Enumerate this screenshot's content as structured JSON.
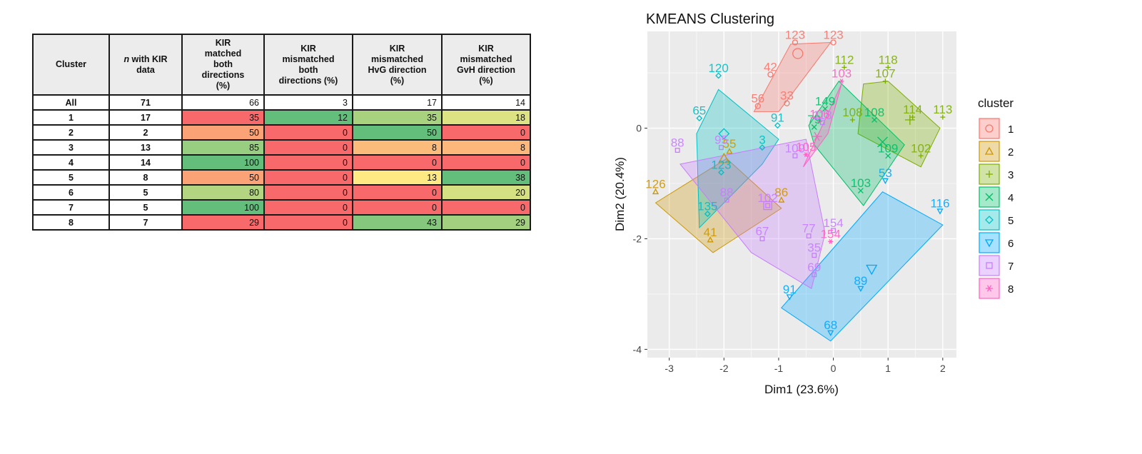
{
  "table": {
    "headers": [
      {
        "parts": [
          "Cluster"
        ]
      },
      {
        "italic": "n",
        "parts": [
          " with KIR",
          "data"
        ]
      },
      {
        "parts": [
          "KIR",
          "matched",
          "both",
          "directions",
          "(%)"
        ]
      },
      {
        "parts": [
          "KIR",
          "mismatched",
          "both",
          "directions (%)"
        ]
      },
      {
        "parts": [
          "KIR",
          "mismatched",
          "HvG direction",
          "(%)"
        ]
      },
      {
        "parts": [
          "KIR",
          "mismatched",
          "GvH direction",
          "(%)"
        ]
      }
    ],
    "rows": [
      [
        "All",
        "71",
        "66",
        "3",
        "17",
        "14"
      ],
      [
        "1",
        "17",
        "35",
        "12",
        "35",
        "18"
      ],
      [
        "2",
        "2",
        "50",
        "0",
        "50",
        "0"
      ],
      [
        "3",
        "13",
        "85",
        "0",
        "8",
        "8"
      ],
      [
        "4",
        "14",
        "100",
        "0",
        "0",
        "0"
      ],
      [
        "5",
        "8",
        "50",
        "0",
        "13",
        "38"
      ],
      [
        "6",
        "5",
        "80",
        "0",
        "0",
        "20"
      ],
      [
        "7",
        "5",
        "100",
        "0",
        "0",
        "0"
      ],
      [
        "8",
        "7",
        "29",
        "0",
        "43",
        "29"
      ]
    ],
    "cell_colors": [
      [
        null,
        null,
        null,
        null,
        null,
        null
      ],
      [
        null,
        null,
        "#f8696b",
        "#63be7b",
        "#a9d27f",
        "#dde283"
      ],
      [
        null,
        null,
        "#fba276",
        "#f8696b",
        "#63be7b",
        "#f8696b"
      ],
      [
        null,
        null,
        "#98ce7f",
        "#f8696b",
        "#fbbb7b",
        "#fcb77a"
      ],
      [
        null,
        null,
        "#63be7b",
        "#f8696b",
        "#f8696b",
        "#f8696b"
      ],
      [
        null,
        null,
        "#fba276",
        "#f8696b",
        "#fee983",
        "#63be7b"
      ],
      [
        null,
        null,
        "#b3d581",
        "#f8696b",
        "#f8696b",
        "#d4e082"
      ],
      [
        null,
        null,
        "#63be7b",
        "#f8696b",
        "#f8696b",
        "#f8696b"
      ],
      [
        null,
        null,
        "#f8696b",
        "#f8696b",
        "#85c87d",
        "#a3d07f"
      ]
    ]
  },
  "chart_data": {
    "type": "scatter",
    "title": "KMEANS Clustering",
    "xlabel": "Dim1 (23.6%)",
    "ylabel": "Dim2 (20.4%)",
    "xlim": [
      -3.4,
      2.25
    ],
    "ylim": [
      -4.15,
      1.75
    ],
    "x_ticks": [
      -3,
      -2,
      -1,
      0,
      1,
      2
    ],
    "y_ticks": [
      -4,
      -2,
      0
    ],
    "grid": true,
    "legend": {
      "title": "cluster",
      "position": "right"
    },
    "series": [
      {
        "name": "1",
        "color": "#f8766d",
        "marker": "circle",
        "points": [
          [
            -0.7,
            1.55,
            "123"
          ],
          [
            0,
            1.55,
            "123"
          ],
          [
            -1.15,
            0.97,
            "42"
          ],
          [
            -1.38,
            0.4,
            "56"
          ],
          [
            -0.85,
            0.45,
            "33"
          ]
        ],
        "hull": [
          [
            -0.78,
            1.52
          ],
          [
            -0.05,
            1.55
          ],
          [
            -1.0,
            0.3
          ],
          [
            -1.45,
            0.3
          ]
        ],
        "centroid": [
          -0.65,
          1.35
        ]
      },
      {
        "name": "2",
        "color": "#cd9600",
        "marker": "triangle",
        "points": [
          [
            -3.25,
            -1.15,
            "126"
          ],
          [
            -1.9,
            -0.42,
            "55"
          ],
          [
            -0.95,
            -1.3,
            "86"
          ],
          [
            -2.25,
            -2.02,
            "41"
          ]
        ],
        "hull": [
          [
            -3.25,
            -1.35
          ],
          [
            -1.95,
            -0.55
          ],
          [
            -0.95,
            -1.45
          ],
          [
            -2.2,
            -2.25
          ]
        ],
        "centroid": [
          -2.0,
          -0.55
        ]
      },
      {
        "name": "3",
        "color": "#7cae00",
        "marker": "plus",
        "points": [
          [
            0.2,
            1.1,
            "112"
          ],
          [
            1.0,
            1.1,
            "118"
          ],
          [
            0.95,
            0.85,
            "107"
          ],
          [
            1.45,
            0.2,
            "114"
          ],
          [
            2.0,
            0.2,
            "113"
          ],
          [
            0.35,
            0.15,
            "108"
          ],
          [
            1.6,
            -0.5,
            "102"
          ]
        ],
        "hull": [
          [
            0.55,
            0.8
          ],
          [
            1.0,
            0.85
          ],
          [
            1.95,
            0.0
          ],
          [
            1.6,
            -0.7
          ],
          [
            0.45,
            -0.1
          ]
        ],
        "centroid": [
          1.4,
          0.15
        ]
      },
      {
        "name": "4",
        "color": "#00be67",
        "marker": "x",
        "points": [
          [
            -0.35,
            0.02,
            "79"
          ],
          [
            -0.15,
            0.35,
            "149"
          ],
          [
            0.75,
            0.15,
            "108"
          ],
          [
            1.0,
            -0.5,
            "109"
          ],
          [
            0.5,
            -1.13,
            "103"
          ]
        ],
        "hull": [
          [
            -0.45,
            0.05
          ],
          [
            0.1,
            0.85
          ],
          [
            1.3,
            -0.3
          ],
          [
            0.55,
            -1.4
          ],
          [
            -0.35,
            -0.3
          ]
        ],
        "centroid": [
          0.9,
          -0.25
        ]
      },
      {
        "name": "5",
        "color": "#00bfc4",
        "marker": "diamond",
        "points": [
          [
            -2.1,
            0.95,
            "120"
          ],
          [
            -2.45,
            0.18,
            "65"
          ],
          [
            -1.02,
            0.05,
            "91"
          ],
          [
            -1.3,
            -0.35,
            "3"
          ],
          [
            -2.05,
            -0.8,
            "123"
          ],
          [
            -2.3,
            -1.55,
            "135"
          ]
        ],
        "hull": [
          [
            -2.1,
            0.7
          ],
          [
            -1.0,
            -0.2
          ],
          [
            -1.3,
            -0.65
          ],
          [
            -2.45,
            -1.8
          ],
          [
            -2.5,
            -0.1
          ]
        ],
        "centroid": [
          -2.0,
          -0.1
        ]
      },
      {
        "name": "6",
        "color": "#00a9ff",
        "marker": "triangle-down",
        "points": [
          [
            0.95,
            -0.95,
            "53"
          ],
          [
            1.95,
            -1.5,
            "116"
          ],
          [
            0.5,
            -2.9,
            "89"
          ],
          [
            -0.8,
            -3.05,
            "91"
          ],
          [
            -0.05,
            -3.7,
            "68"
          ]
        ],
        "hull": [
          [
            0.9,
            -1.15
          ],
          [
            2.0,
            -1.75
          ],
          [
            -0.05,
            -3.85
          ],
          [
            -0.95,
            -3.25
          ]
        ],
        "centroid": [
          0.7,
          -2.55
        ]
      },
      {
        "name": "7",
        "color": "#c77cff",
        "marker": "square",
        "points": [
          [
            -2.85,
            -0.4,
            "88"
          ],
          [
            -2.05,
            -0.35,
            "95"
          ],
          [
            -1.95,
            -1.3,
            "88"
          ],
          [
            -1.3,
            -2.0,
            "67"
          ],
          [
            -0.45,
            -1.95,
            "77"
          ],
          [
            -0.35,
            -2.3,
            "35"
          ],
          [
            -0.35,
            -2.65,
            "69"
          ],
          [
            -0.7,
            -0.5,
            "109"
          ],
          [
            -0.2,
            0.1,
            "118"
          ],
          [
            0.0,
            -1.85,
            "154"
          ],
          [
            -1.2,
            -1.4,
            "102"
          ]
        ],
        "hull": [
          [
            -2.8,
            -0.65
          ],
          [
            -0.5,
            -0.2
          ],
          [
            -0.15,
            -1.9
          ],
          [
            -0.4,
            -2.9
          ],
          [
            -1.5,
            -2.25
          ]
        ],
        "centroid": [
          -1.2,
          -1.4
        ]
      },
      {
        "name": "8",
        "color": "#ff61c3",
        "marker": "asterisk",
        "points": [
          [
            -0.5,
            -0.48,
            "105"
          ],
          [
            -0.25,
            0.12,
            "106"
          ],
          [
            0.15,
            0.85,
            "103"
          ],
          [
            -0.05,
            -2.05,
            "154"
          ]
        ],
        "hull": [
          [
            -0.55,
            -0.7
          ],
          [
            0.15,
            0.8
          ],
          [
            -0.1,
            -0.1
          ]
        ],
        "centroid": [
          -0.3,
          -0.15
        ]
      }
    ]
  }
}
